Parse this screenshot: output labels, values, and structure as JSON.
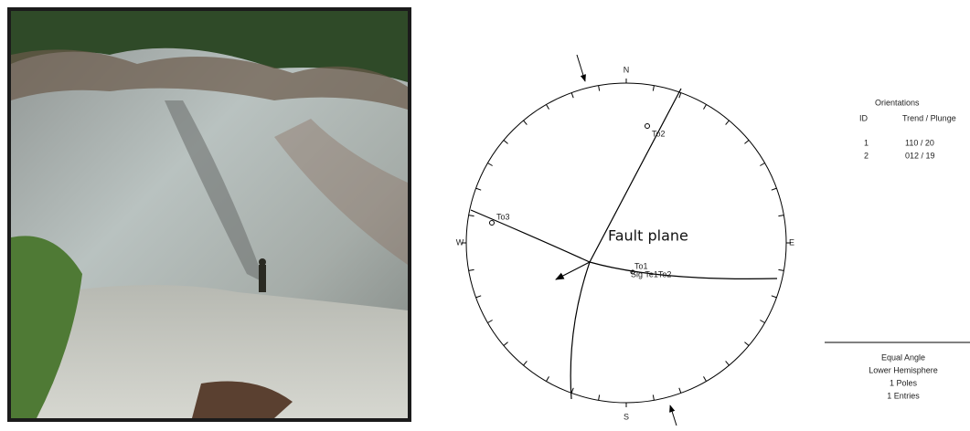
{
  "stereonet": {
    "compass": [
      "N",
      "E",
      "S",
      "W"
    ],
    "labels": [
      "To2",
      "To3",
      "To1",
      "Sig Te1To2"
    ],
    "annotation": "Fault plane"
  },
  "orientations": {
    "title": "Orientations",
    "headers": [
      "ID",
      "Trend / Plunge"
    ],
    "rows": [
      [
        "1",
        "110 / 20"
      ],
      [
        "2",
        "012 / 19"
      ]
    ]
  },
  "footer": [
    "Equal Angle",
    "Lower Hemisphere",
    "1 Poles",
    "1 Entries"
  ]
}
